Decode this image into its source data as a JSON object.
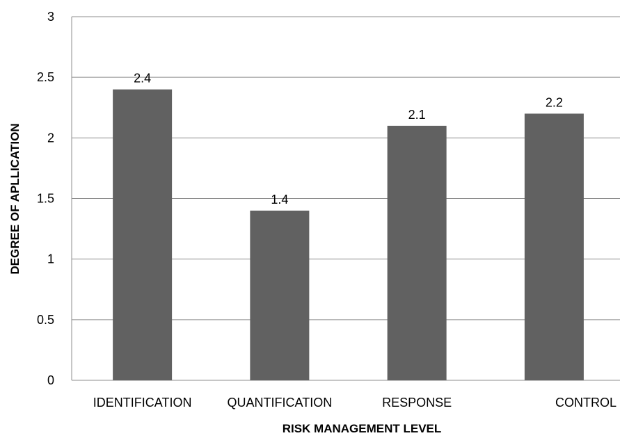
{
  "chart_data": {
    "type": "bar",
    "categories": [
      "IDENTIFICATION",
      "QUANTIFICATION",
      "RESPONSE",
      "CONTROL"
    ],
    "values": [
      2.4,
      1.4,
      2.1,
      2.2
    ],
    "data_labels": [
      "2.4",
      "1.4",
      "2.1",
      "2.2"
    ],
    "title": "",
    "xlabel": "RISK MANAGEMENT LEVEL",
    "ylabel": "DEGREE OF APLLICATION",
    "ylim": [
      0,
      3
    ],
    "yticks": [
      0,
      0.5,
      1,
      1.5,
      2,
      2.5,
      3
    ],
    "ytick_labels": [
      "0",
      "0.5",
      "1",
      "1.5",
      "2",
      "2.5",
      "3"
    ],
    "grid": true,
    "legend": "none",
    "bar_color": "#616161"
  }
}
